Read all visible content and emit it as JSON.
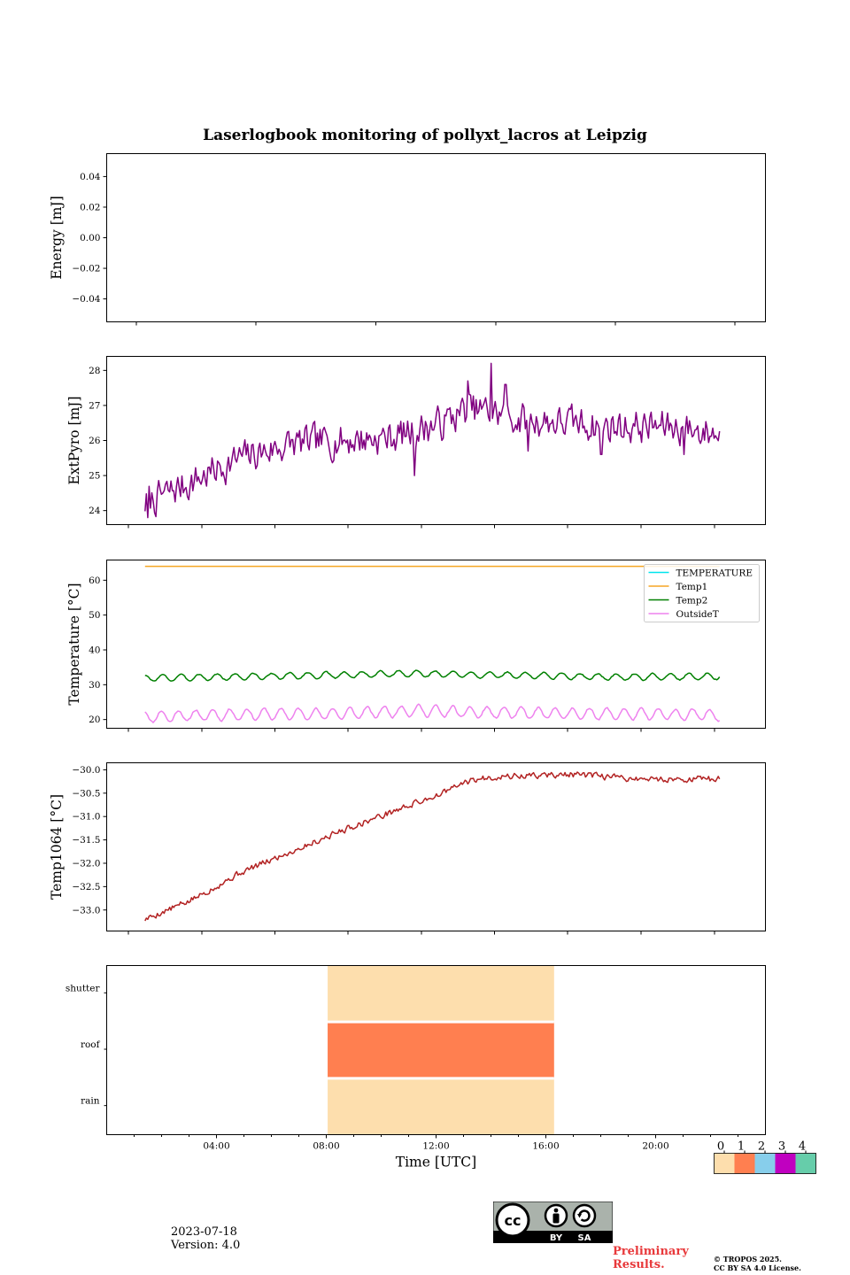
{
  "title": "Laserlogbook monitoring of pollyxt_lacros at Leipzig",
  "footer": {
    "date": "2023-07-18",
    "version": "Version: 4.0",
    "preliminary_line1": "Preliminary",
    "preliminary_line2": "Results.",
    "copyright_line1": "© TROPOS 2025.",
    "copyright_line2": "CC BY SA 4.0 License.",
    "cc_by": "BY",
    "cc_sa": "SA"
  },
  "colors": {
    "extpyro": "#800080",
    "temperature": "#00e5ee",
    "temp1": "#f5a623",
    "temp2": "#008000",
    "outsideT": "#ee82ee",
    "temp1064": "#b22222",
    "flag0": "#fddead",
    "flag1": "#ff7f50",
    "flag2": "#87ceeb",
    "flag3": "#c000c0",
    "flag4": "#66cdaa"
  },
  "chart_data": [
    {
      "id": "energy",
      "type": "line",
      "ylabel": "Energy [mJ]",
      "ylim": [
        -0.055,
        0.055
      ],
      "yticks": [
        0.04,
        0.02,
        0.0,
        -0.02,
        -0.04
      ],
      "ytick_labels": [
        "0.04",
        "0.02",
        "0.00",
        "−0.02",
        "−0.04"
      ],
      "xlim": [
        0,
        24
      ],
      "series": []
    },
    {
      "id": "extpyro",
      "type": "line",
      "ylabel": "ExtPyro [mJ]",
      "ylim": [
        23.6,
        28.4
      ],
      "yticks": [
        24,
        25,
        26,
        27,
        28
      ],
      "ytick_labels": [
        "24",
        "25",
        "26",
        "27",
        "28"
      ],
      "xlim": [
        -1.32,
        24.82
      ],
      "series": [
        {
          "color_key": "extpyro",
          "t0": 0.2,
          "t1": 23.0,
          "noise": 0.42,
          "seed": 7,
          "trend": [
            [
              0.2,
              24.2
            ],
            [
              2,
              24.8
            ],
            [
              4,
              25.5
            ],
            [
              6,
              25.9
            ],
            [
              8,
              26.0
            ],
            [
              10,
              26.1
            ],
            [
              12,
              26.5
            ],
            [
              13,
              26.9
            ],
            [
              14,
              26.8
            ],
            [
              15,
              26.6
            ],
            [
              17,
              26.5
            ],
            [
              19,
              26.4
            ],
            [
              21,
              26.4
            ],
            [
              23,
              26.2
            ]
          ],
          "spikes": [
            [
              0.3,
              23.8
            ],
            [
              13.95,
              28.2
            ],
            [
              13.0,
              27.7
            ],
            [
              14.5,
              27.6
            ],
            [
              10.9,
              25.0
            ],
            [
              15.4,
              25.7
            ],
            [
              18.3,
              25.6
            ],
            [
              21.6,
              25.6
            ]
          ]
        }
      ]
    },
    {
      "id": "temperature",
      "type": "line",
      "ylabel": "Temperature [°C]",
      "ylim": [
        17.5,
        65.8
      ],
      "yticks": [
        20,
        30,
        40,
        50,
        60
      ],
      "ytick_labels": [
        "20",
        "30",
        "40",
        "50",
        "60"
      ],
      "xlim": [
        -1.32,
        24.82
      ],
      "legend": [
        "TEMPERATURE",
        "Temp1",
        "Temp2",
        "OutsideT"
      ],
      "legend_position": "top-right",
      "series": [
        {
          "name": "TEMPERATURE",
          "color_key": "temperature",
          "empty": true
        },
        {
          "name": "Temp1",
          "color_key": "temp1",
          "t0": 0.2,
          "t1": 23.0,
          "base": 64.0,
          "amp": 0,
          "period": 1,
          "noise": 0,
          "trend": [
            [
              0.2,
              64.0
            ],
            [
              23.0,
              64.0
            ]
          ]
        },
        {
          "name": "Temp2",
          "color_key": "temp2",
          "t0": 0.2,
          "t1": 23.0,
          "amp": 0.9,
          "period": 0.72,
          "noise": 0.15,
          "seed": 3,
          "trend": [
            [
              0.2,
              31.9
            ],
            [
              4,
              32.3
            ],
            [
              8,
              32.8
            ],
            [
              11,
              33.2
            ],
            [
              13,
              32.9
            ],
            [
              16,
              32.6
            ],
            [
              19,
              32.2
            ],
            [
              23,
              32.4
            ]
          ]
        },
        {
          "name": "OutsideT",
          "color_key": "outsideT",
          "t0": 0.2,
          "t1": 23.0,
          "amp": 1.6,
          "period": 0.68,
          "noise": 0.25,
          "seed": 11,
          "trend": [
            [
              0.2,
              20.8
            ],
            [
              4,
              21.5
            ],
            [
              8,
              21.7
            ],
            [
              11,
              22.6
            ],
            [
              13,
              22.1
            ],
            [
              16,
              21.8
            ],
            [
              19,
              21.6
            ],
            [
              23,
              21.3
            ]
          ]
        }
      ]
    },
    {
      "id": "temp1064",
      "type": "line",
      "ylabel": "Temp1064 [°C]",
      "ylim": [
        -33.45,
        -29.85
      ],
      "yticks": [
        -30.0,
        -30.5,
        -31.0,
        -31.5,
        -32.0,
        -32.5,
        -33.0
      ],
      "ytick_labels": [
        "−30.0",
        "−30.5",
        "−31.0",
        "−31.5",
        "−32.0",
        "−32.5",
        "−33.0"
      ],
      "xlim": [
        -1.32,
        24.82
      ],
      "series": [
        {
          "color_key": "temp1064",
          "t0": 0.2,
          "t1": 23.0,
          "noise": 0.06,
          "seed": 5,
          "trend": [
            [
              0.2,
              -33.2
            ],
            [
              2,
              -32.8
            ],
            [
              4,
              -32.2
            ],
            [
              6,
              -31.75
            ],
            [
              8,
              -31.3
            ],
            [
              10,
              -30.9
            ],
            [
              12,
              -30.5
            ],
            [
              13,
              -30.25
            ],
            [
              14,
              -30.15
            ],
            [
              17,
              -30.1
            ],
            [
              20,
              -30.2
            ],
            [
              23,
              -30.2
            ]
          ]
        }
      ]
    },
    {
      "id": "flags",
      "type": "heatmap",
      "rows": [
        "shutter",
        "roof",
        "rain"
      ],
      "xlabel": "Time [UTC]",
      "xlim": [
        0,
        24
      ],
      "xticks": [
        4,
        8,
        12,
        16,
        20
      ],
      "xtick_labels": [
        "04:00",
        "08:00",
        "12:00",
        "16:00",
        "20:00"
      ],
      "blocks": [
        {
          "row": "shutter",
          "start": 8.05,
          "end": 16.3,
          "value": 0
        },
        {
          "row": "roof",
          "start": 8.05,
          "end": 16.3,
          "value": 1
        },
        {
          "row": "rain",
          "start": 8.05,
          "end": 16.3,
          "value": 0
        }
      ],
      "colorbar": {
        "values": [
          0,
          1,
          2,
          3,
          4
        ],
        "labels": [
          "0",
          "1",
          "2",
          "3",
          "4"
        ]
      }
    }
  ]
}
